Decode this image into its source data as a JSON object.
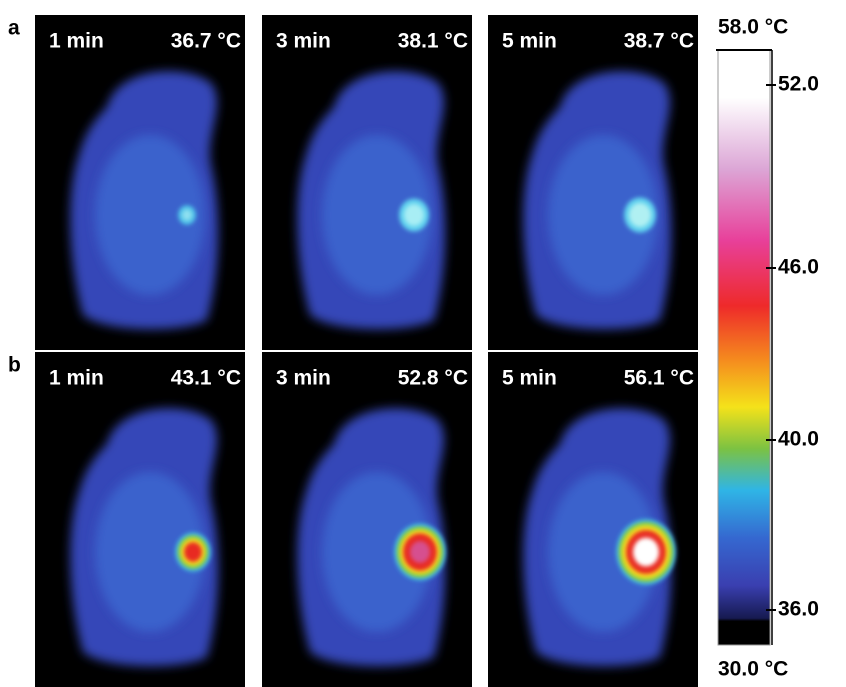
{
  "rows": [
    {
      "label": "a",
      "panels": [
        {
          "time": "1 min",
          "temperature": "36.7 °C"
        },
        {
          "time": "3 min",
          "temperature": "38.1 °C"
        },
        {
          "time": "5 min",
          "temperature": "38.7 °C"
        }
      ]
    },
    {
      "label": "b",
      "panels": [
        {
          "time": "1 min",
          "temperature": "43.1 °C"
        },
        {
          "time": "3 min",
          "temperature": "52.8 °C"
        },
        {
          "time": "5 min",
          "temperature": "56.1 °C"
        }
      ]
    }
  ],
  "colorbar": {
    "max": "58.0 °C",
    "min": "30.0 °C",
    "ticks": [
      "52.0",
      "46.0",
      "40.0",
      "36.0"
    ]
  }
}
